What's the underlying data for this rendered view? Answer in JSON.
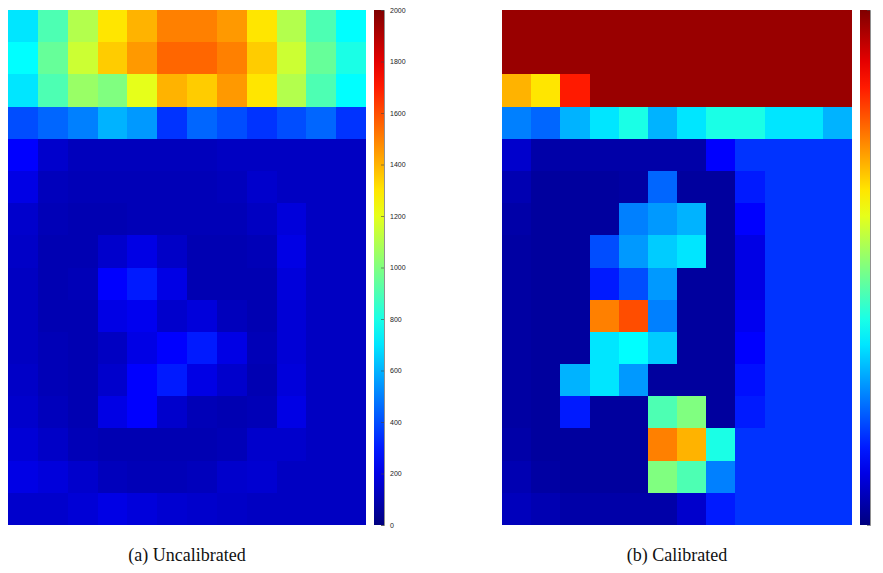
{
  "chart_data": [
    {
      "type": "heatmap",
      "title": "(a) Uncalibrated",
      "tick_labels": false,
      "colorbar": {
        "range": [
          0,
          2000
        ],
        "ticks": [
          0,
          200,
          400,
          600,
          800,
          1000,
          1200,
          1400,
          1600,
          1800,
          2000
        ]
      },
      "cells": [
        [
          700,
          900,
          1100,
          1300,
          1400,
          1500,
          1500,
          1450,
          1300,
          1100,
          900,
          750
        ],
        [
          750,
          950,
          1150,
          1350,
          1450,
          1550,
          1550,
          1500,
          1350,
          1150,
          950,
          800
        ],
        [
          700,
          900,
          1050,
          1000,
          1200,
          1400,
          1350,
          1450,
          1300,
          1100,
          900,
          750
        ],
        [
          400,
          450,
          500,
          600,
          550,
          350,
          450,
          400,
          350,
          400,
          450,
          350
        ],
        [
          250,
          150,
          120,
          120,
          120,
          120,
          120,
          130,
          130,
          130,
          130,
          130
        ],
        [
          200,
          120,
          110,
          110,
          110,
          110,
          110,
          120,
          150,
          130,
          130,
          130
        ],
        [
          150,
          110,
          100,
          100,
          110,
          110,
          110,
          110,
          130,
          180,
          130,
          130
        ],
        [
          140,
          100,
          100,
          150,
          200,
          140,
          100,
          100,
          110,
          200,
          130,
          130
        ],
        [
          130,
          100,
          110,
          250,
          300,
          200,
          100,
          100,
          100,
          180,
          130,
          130
        ],
        [
          130,
          100,
          100,
          200,
          220,
          150,
          180,
          120,
          100,
          170,
          130,
          130
        ],
        [
          130,
          110,
          100,
          130,
          200,
          250,
          300,
          200,
          110,
          170,
          130,
          130
        ],
        [
          140,
          110,
          100,
          150,
          250,
          300,
          200,
          150,
          100,
          180,
          130,
          130
        ],
        [
          150,
          120,
          100,
          200,
          250,
          150,
          110,
          100,
          110,
          200,
          130,
          130
        ],
        [
          170,
          140,
          110,
          100,
          100,
          100,
          100,
          110,
          150,
          150,
          130,
          130
        ],
        [
          200,
          180,
          150,
          120,
          110,
          110,
          120,
          150,
          160,
          130,
          130,
          130
        ],
        [
          150,
          150,
          170,
          200,
          180,
          160,
          150,
          140,
          130,
          130,
          130,
          130
        ]
      ]
    },
    {
      "type": "heatmap",
      "title": "(b) Calibrated",
      "tick_labels": false,
      "colorbar": {
        "range": [
          0,
          2000
        ]
      },
      "cells": [
        [
          1950,
          1950,
          1950,
          1950,
          1950,
          1950,
          1950,
          1950,
          1950,
          1950,
          1950,
          1950
        ],
        [
          1950,
          1950,
          1950,
          1950,
          1950,
          1950,
          1950,
          1950,
          1950,
          1950,
          1950,
          1950
        ],
        [
          1400,
          1300,
          1700,
          1950,
          1950,
          1950,
          1950,
          1950,
          1950,
          1950,
          1950,
          1950
        ],
        [
          500,
          450,
          600,
          700,
          800,
          600,
          700,
          800,
          800,
          700,
          700,
          600
        ],
        [
          150,
          80,
          80,
          80,
          80,
          80,
          80,
          250,
          350,
          350,
          350,
          350
        ],
        [
          100,
          60,
          60,
          60,
          70,
          450,
          60,
          60,
          300,
          350,
          350,
          350
        ],
        [
          80,
          60,
          60,
          60,
          500,
          550,
          600,
          60,
          250,
          350,
          350,
          350
        ],
        [
          70,
          60,
          60,
          400,
          550,
          650,
          700,
          60,
          200,
          350,
          350,
          350
        ],
        [
          70,
          60,
          60,
          300,
          400,
          550,
          60,
          60,
          200,
          350,
          350,
          350
        ],
        [
          70,
          60,
          60,
          1500,
          1600,
          500,
          60,
          60,
          220,
          350,
          350,
          350
        ],
        [
          70,
          60,
          60,
          700,
          750,
          650,
          60,
          60,
          250,
          350,
          350,
          350
        ],
        [
          70,
          60,
          600,
          700,
          550,
          60,
          60,
          60,
          280,
          350,
          350,
          350
        ],
        [
          70,
          60,
          300,
          60,
          60,
          900,
          1000,
          60,
          300,
          350,
          350,
          350
        ],
        [
          80,
          60,
          60,
          60,
          60,
          1500,
          1400,
          800,
          350,
          350,
          350,
          350
        ],
        [
          100,
          70,
          60,
          60,
          60,
          1000,
          900,
          500,
          350,
          350,
          350,
          350
        ],
        [
          120,
          100,
          80,
          80,
          80,
          80,
          150,
          300,
          350,
          350,
          350,
          350
        ]
      ]
    }
  ]
}
